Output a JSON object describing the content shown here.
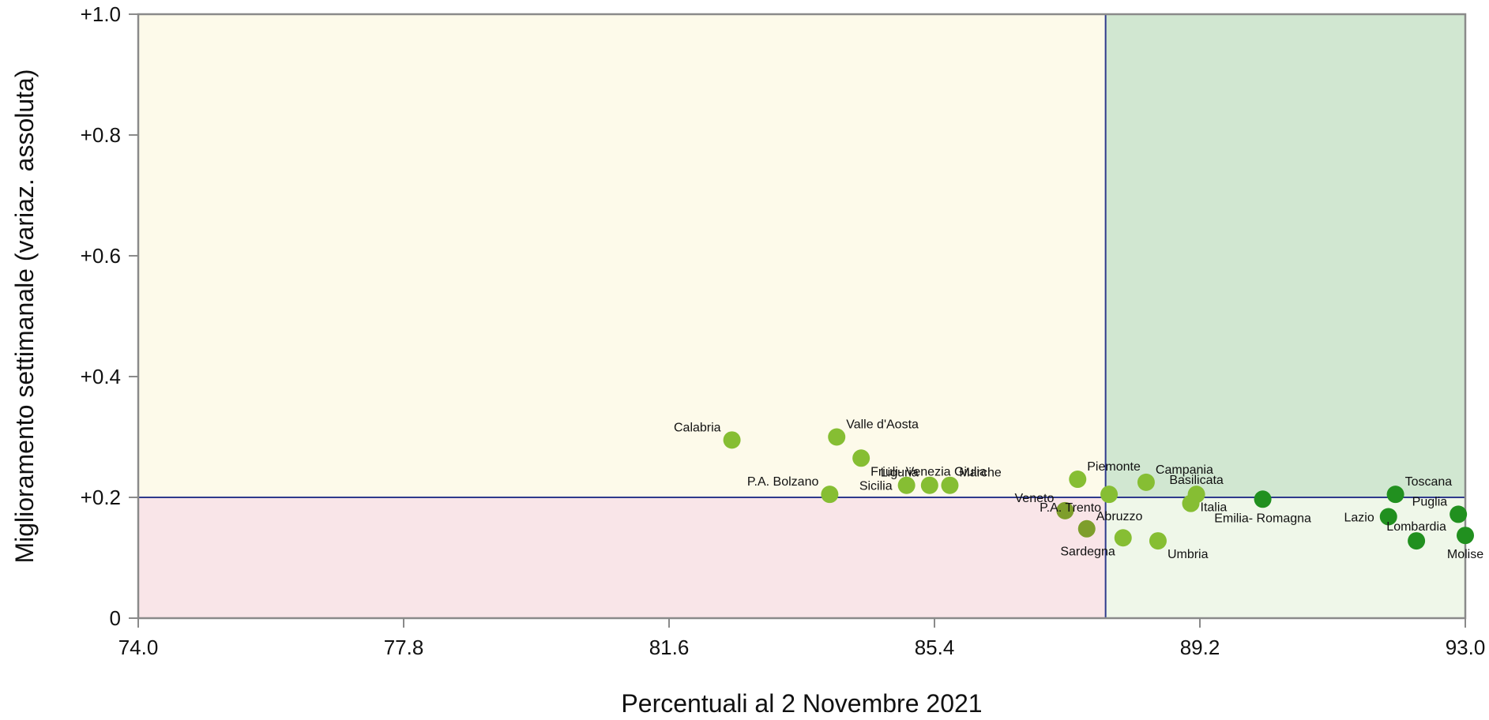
{
  "chart_data": {
    "type": "scatter",
    "title": "",
    "xlabel": "Percentuali al 2  Novembre 2021",
    "ylabel": "Miglioramento settimanale (variaz. assoluta)",
    "xlim": [
      74.0,
      93.0
    ],
    "ylim": [
      0,
      1.0
    ],
    "x_ticks": [
      74.0,
      77.8,
      81.6,
      85.4,
      89.2,
      93.0
    ],
    "x_tick_labels": [
      "74.0",
      "77.8",
      "81.6",
      "85.4",
      "89.2",
      "93.0"
    ],
    "y_ticks": [
      0,
      0.2,
      0.4,
      0.6,
      0.8,
      1.0
    ],
    "y_tick_labels": [
      "0",
      "+0.2",
      "+0.4",
      "+0.6",
      "+0.8",
      "+1.0"
    ],
    "grid": false,
    "reference_lines": {
      "x": 87.85,
      "y": 0.2,
      "color": "#2e3a8c"
    },
    "quadrants": {
      "top_left": "#fdfaea",
      "top_right": "#d1e7d1",
      "bottom_left": "#f9e5e8",
      "bottom_right": "#eff7e9"
    },
    "colors": {
      "light": "#86be33",
      "olive": "#7e9e2c",
      "dark": "#21901f"
    },
    "points": [
      {
        "label": "Calabria",
        "x": 82.5,
        "y": 0.295,
        "color": "light",
        "anchor": "tl"
      },
      {
        "label": "Valle d'Aosta",
        "x": 84.0,
        "y": 0.3,
        "color": "light",
        "anchor": "tr"
      },
      {
        "label": "Friuli- Venezia Giulia",
        "x": 84.35,
        "y": 0.265,
        "color": "light",
        "anchor": "br"
      },
      {
        "label": "P.A. Bolzano",
        "x": 83.9,
        "y": 0.205,
        "color": "light",
        "anchor": "tl"
      },
      {
        "label": "Sicilia",
        "x": 85.0,
        "y": 0.22,
        "color": "light",
        "anchor": "l"
      },
      {
        "label": "Liguria",
        "x": 85.33,
        "y": 0.22,
        "color": "light",
        "anchor": "tl"
      },
      {
        "label": "Marche",
        "x": 85.62,
        "y": 0.22,
        "color": "light",
        "anchor": "tr"
      },
      {
        "label": "Piemonte",
        "x": 87.45,
        "y": 0.23,
        "color": "light",
        "anchor": "tr"
      },
      {
        "label": "Veneto",
        "x": 87.27,
        "y": 0.178,
        "color": "olive",
        "anchor": "tl"
      },
      {
        "label": "Abruzzo",
        "x": 87.58,
        "y": 0.148,
        "color": "olive",
        "anchor": "tr"
      },
      {
        "label": "P.A. Trento",
        "x": 87.9,
        "y": 0.205,
        "color": "light",
        "anchor": "bl"
      },
      {
        "label": "Sardegna",
        "x": 88.1,
        "y": 0.133,
        "color": "light",
        "anchor": "bl"
      },
      {
        "label": "Umbria",
        "x": 88.6,
        "y": 0.128,
        "color": "light",
        "anchor": "br"
      },
      {
        "label": "Campania",
        "x": 88.43,
        "y": 0.225,
        "color": "light",
        "anchor": "tr"
      },
      {
        "label": "Basilicata",
        "x": 89.15,
        "y": 0.205,
        "color": "light",
        "anchor": "t"
      },
      {
        "label": "Italia",
        "x": 89.07,
        "y": 0.19,
        "color": "light",
        "anchor": "r"
      },
      {
        "label": "Emilia- Romagna",
        "x": 90.1,
        "y": 0.197,
        "color": "dark",
        "anchor": "b"
      },
      {
        "label": "Toscana",
        "x": 92.0,
        "y": 0.205,
        "color": "dark",
        "anchor": "tr"
      },
      {
        "label": "Lazio",
        "x": 91.9,
        "y": 0.168,
        "color": "dark",
        "anchor": "l"
      },
      {
        "label": "Puglia",
        "x": 92.9,
        "y": 0.172,
        "color": "dark",
        "anchor": "tl"
      },
      {
        "label": "Lombardia",
        "x": 92.3,
        "y": 0.128,
        "color": "dark",
        "anchor": "t"
      },
      {
        "label": "Molise",
        "x": 93.0,
        "y": 0.137,
        "color": "dark",
        "anchor": "b"
      }
    ]
  }
}
